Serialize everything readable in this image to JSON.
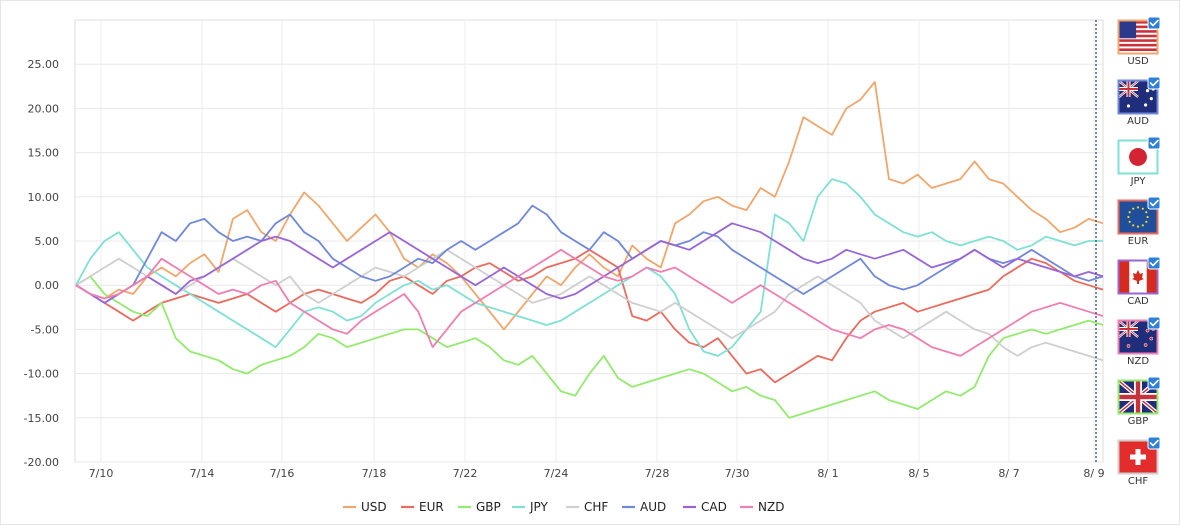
{
  "chart_data": {
    "type": "line",
    "title": "",
    "xlabel": "",
    "ylabel": "",
    "ylim": [
      -20,
      30
    ],
    "y_ticks": [
      "25.00",
      "20.00",
      "15.00",
      "10.00",
      "5.00",
      "0.00",
      "-5.00",
      "-10.00",
      "-15.00",
      "-20.00"
    ],
    "x_tick_labels": [
      "7/10",
      "7/14",
      "7/16",
      "7/18",
      "7/22",
      "7/24",
      "7/28",
      "7/30",
      "8/ 1",
      "8/ 5",
      "8/ 7",
      "8/ 9"
    ],
    "grid": true,
    "legend_position": "bottom",
    "series": [
      {
        "name": "USD",
        "color": "#f0a66c",
        "values": [
          0.0,
          -1.0,
          -1.5,
          -0.5,
          -1.0,
          1.0,
          2.0,
          1.0,
          2.5,
          3.5,
          1.5,
          7.5,
          8.5,
          6.0,
          5.0,
          8.0,
          10.5,
          9.0,
          7.0,
          5.0,
          6.5,
          8.0,
          6.0,
          3.0,
          2.0,
          3.5,
          2.5,
          1.0,
          -1.0,
          -3.0,
          -5.0,
          -3.0,
          -1.0,
          1.0,
          0.0,
          2.0,
          3.5,
          2.0,
          1.0,
          4.5,
          3.0,
          2.0,
          7.0,
          8.0,
          9.5,
          10.0,
          9.0,
          8.5,
          11.0,
          10.0,
          14.0,
          19.0,
          18.0,
          17.0,
          20.0,
          21.0,
          23.0,
          12.0,
          11.5,
          12.5,
          11.0,
          11.5,
          12.0,
          14.0,
          12.0,
          11.5,
          10.0,
          8.5,
          7.5,
          6.0,
          6.5,
          7.5,
          7.0
        ]
      },
      {
        "name": "EUR",
        "color": "#ea6b5e",
        "values": [
          0.0,
          -1.0,
          -2.0,
          -3.0,
          -4.0,
          -3.0,
          -2.0,
          -1.5,
          -1.0,
          -1.5,
          -2.0,
          -1.5,
          -1.0,
          -2.0,
          -3.0,
          -2.0,
          -1.0,
          -0.5,
          -1.0,
          -1.5,
          -2.0,
          -1.0,
          0.5,
          1.0,
          0.0,
          -1.0,
          0.5,
          1.0,
          2.0,
          2.5,
          1.5,
          0.5,
          1.0,
          2.0,
          2.5,
          3.0,
          4.0,
          3.0,
          2.0,
          -3.5,
          -4.0,
          -3.0,
          -5.0,
          -6.5,
          -7.0,
          -6.0,
          -8.0,
          -10.0,
          -9.5,
          -11.0,
          -10.0,
          -9.0,
          -8.0,
          -8.5,
          -6.0,
          -4.0,
          -3.0,
          -2.5,
          -2.0,
          -3.0,
          -2.5,
          -2.0,
          -1.5,
          -1.0,
          -0.5,
          1.0,
          2.0,
          3.0,
          2.5,
          1.5,
          0.5,
          0.0,
          -0.5
        ]
      },
      {
        "name": "GBP",
        "color": "#93ea6d",
        "values": [
          0.0,
          1.0,
          -1.0,
          -2.0,
          -3.0,
          -3.5,
          -2.0,
          -6.0,
          -7.5,
          -8.0,
          -8.5,
          -9.5,
          -10.0,
          -9.0,
          -8.5,
          -8.0,
          -7.0,
          -5.5,
          -6.0,
          -7.0,
          -6.5,
          -6.0,
          -5.5,
          -5.0,
          -5.0,
          -6.0,
          -7.0,
          -6.5,
          -6.0,
          -7.0,
          -8.5,
          -9.0,
          -8.0,
          -10.0,
          -12.0,
          -12.5,
          -10.0,
          -8.0,
          -10.5,
          -11.5,
          -11.0,
          -10.5,
          -10.0,
          -9.5,
          -10.0,
          -11.0,
          -12.0,
          -11.5,
          -12.5,
          -13.0,
          -15.0,
          -14.5,
          -14.0,
          -13.5,
          -13.0,
          -12.5,
          -12.0,
          -13.0,
          -13.5,
          -14.0,
          -13.0,
          -12.0,
          -12.5,
          -11.5,
          -8.0,
          -6.0,
          -5.5,
          -5.0,
          -5.5,
          -5.0,
          -4.5,
          -4.0,
          -4.5
        ]
      },
      {
        "name": "JPY",
        "color": "#7fe0d4",
        "values": [
          0.0,
          3.0,
          5.0,
          6.0,
          4.0,
          2.0,
          1.0,
          0.0,
          -1.0,
          -2.0,
          -3.0,
          -4.0,
          -5.0,
          -6.0,
          -7.0,
          -5.0,
          -3.0,
          -2.5,
          -3.0,
          -4.0,
          -3.5,
          -2.0,
          -1.0,
          0.0,
          0.5,
          -0.5,
          0.0,
          -1.0,
          -2.0,
          -2.5,
          -3.0,
          -3.5,
          -4.0,
          -4.5,
          -4.0,
          -3.0,
          -2.0,
          -1.0,
          0.0,
          1.0,
          2.0,
          1.0,
          -1.0,
          -5.0,
          -7.5,
          -8.0,
          -7.0,
          -5.0,
          -3.0,
          8.0,
          7.0,
          5.0,
          10.0,
          12.0,
          11.5,
          10.0,
          8.0,
          7.0,
          6.0,
          5.5,
          6.0,
          5.0,
          4.5,
          5.0,
          5.5,
          5.0,
          4.0,
          4.5,
          5.5,
          5.0,
          4.5,
          5.0,
          5.0
        ]
      },
      {
        "name": "CHF",
        "color": "#cfcfcf",
        "values": [
          0.0,
          1.0,
          2.0,
          3.0,
          2.0,
          1.0,
          0.0,
          -1.0,
          0.0,
          1.0,
          2.0,
          3.0,
          2.0,
          1.0,
          0.0,
          1.0,
          -1.0,
          -2.0,
          -1.0,
          0.0,
          1.0,
          2.0,
          1.5,
          1.0,
          2.0,
          3.0,
          4.0,
          3.0,
          2.0,
          1.0,
          0.0,
          -1.0,
          -2.0,
          -1.5,
          -1.0,
          0.0,
          1.0,
          0.0,
          -1.0,
          -2.0,
          -2.5,
          -3.0,
          -2.0,
          -3.0,
          -4.0,
          -5.0,
          -6.0,
          -5.0,
          -4.0,
          -3.0,
          -1.0,
          0.0,
          1.0,
          0.0,
          -1.0,
          -2.0,
          -4.0,
          -5.0,
          -6.0,
          -5.0,
          -4.0,
          -3.0,
          -4.0,
          -5.0,
          -5.5,
          -7.0,
          -8.0,
          -7.0,
          -6.5,
          -7.0,
          -7.5,
          -8.0,
          -8.5
        ]
      },
      {
        "name": "AUD",
        "color": "#7088d8",
        "values": [
          0.0,
          -1.0,
          -2.0,
          -1.0,
          0.0,
          3.0,
          6.0,
          5.0,
          7.0,
          7.5,
          6.0,
          5.0,
          5.5,
          5.0,
          7.0,
          8.0,
          6.0,
          5.0,
          3.0,
          2.0,
          1.0,
          0.5,
          1.0,
          2.0,
          3.0,
          2.5,
          4.0,
          5.0,
          4.0,
          5.0,
          6.0,
          7.0,
          9.0,
          8.0,
          6.0,
          5.0,
          4.0,
          6.0,
          5.0,
          3.0,
          4.0,
          5.0,
          4.5,
          5.0,
          6.0,
          5.5,
          4.0,
          3.0,
          2.0,
          1.0,
          0.0,
          -1.0,
          0.0,
          1.0,
          2.0,
          3.0,
          1.0,
          0.0,
          -0.5,
          0.0,
          1.0,
          2.0,
          3.0,
          4.0,
          3.0,
          2.5,
          3.0,
          4.0,
          3.0,
          2.0,
          1.0,
          0.5,
          1.0
        ]
      },
      {
        "name": "CAD",
        "color": "#9966d6",
        "values": [
          0.0,
          -1.0,
          -2.0,
          -1.0,
          0.0,
          1.0,
          0.0,
          -1.0,
          0.5,
          1.0,
          2.0,
          3.0,
          4.0,
          5.0,
          5.5,
          5.0,
          4.0,
          3.0,
          2.0,
          3.0,
          4.0,
          5.0,
          6.0,
          5.0,
          4.0,
          3.0,
          2.0,
          1.0,
          0.0,
          1.0,
          2.0,
          1.0,
          0.0,
          -1.0,
          -1.5,
          -1.0,
          0.0,
          1.0,
          2.0,
          3.0,
          4.0,
          5.0,
          4.5,
          4.0,
          5.0,
          6.0,
          7.0,
          6.5,
          6.0,
          5.0,
          4.0,
          3.0,
          2.5,
          3.0,
          4.0,
          3.5,
          3.0,
          3.5,
          4.0,
          3.0,
          2.0,
          2.5,
          3.0,
          4.0,
          3.0,
          2.0,
          3.0,
          2.5,
          2.0,
          1.5,
          1.0,
          1.5,
          1.0
        ]
      },
      {
        "name": "NZD",
        "color": "#ef7fb1",
        "values": [
          0.0,
          -1.0,
          -1.5,
          -1.0,
          0.0,
          1.0,
          3.0,
          2.0,
          1.0,
          0.0,
          -1.0,
          -0.5,
          -1.0,
          0.0,
          0.5,
          -2.0,
          -3.0,
          -4.0,
          -5.0,
          -5.5,
          -4.0,
          -3.0,
          -2.0,
          -1.0,
          -3.0,
          -7.0,
          -5.0,
          -3.0,
          -2.0,
          -1.0,
          0.0,
          1.0,
          2.0,
          3.0,
          4.0,
          3.0,
          2.0,
          1.0,
          0.5,
          1.0,
          2.0,
          1.5,
          2.0,
          1.0,
          0.0,
          -1.0,
          -2.0,
          -1.0,
          0.0,
          -1.0,
          -2.0,
          -3.0,
          -4.0,
          -5.0,
          -5.5,
          -6.0,
          -5.0,
          -4.5,
          -5.0,
          -6.0,
          -7.0,
          -7.5,
          -8.0,
          -7.0,
          -6.0,
          -5.0,
          -4.0,
          -3.0,
          -2.5,
          -2.0,
          -2.5,
          -3.0,
          -3.5
        ]
      }
    ]
  },
  "currency_panel": {
    "items": [
      {
        "code": "USD",
        "checked": true
      },
      {
        "code": "AUD",
        "checked": true
      },
      {
        "code": "JPY",
        "checked": true
      },
      {
        "code": "EUR",
        "checked": true
      },
      {
        "code": "CAD",
        "checked": true
      },
      {
        "code": "NZD",
        "checked": true
      },
      {
        "code": "GBP",
        "checked": true
      },
      {
        "code": "CHF",
        "checked": true
      }
    ]
  }
}
